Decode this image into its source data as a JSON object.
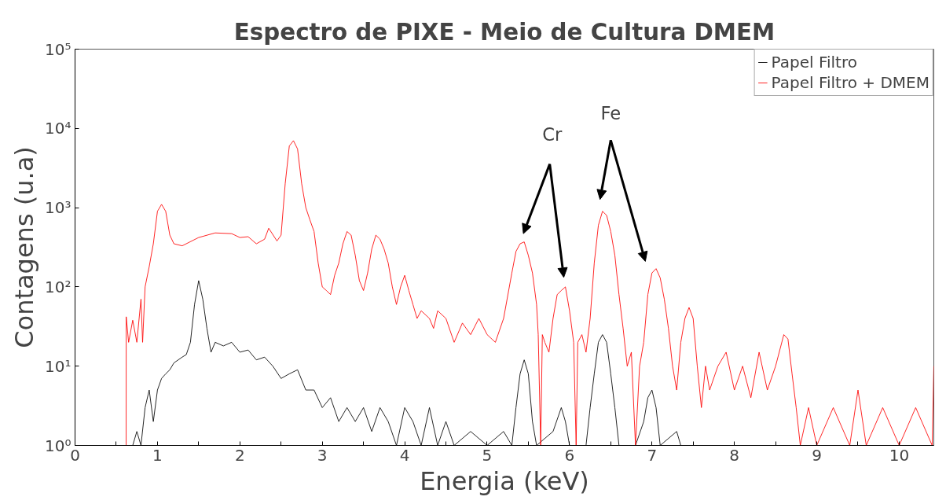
{
  "chart_data": {
    "type": "line",
    "title": "Espectro de PIXE - Meio de Cultura DMEM",
    "xlabel": "Energia (keV)",
    "ylabel": "Contagens (u.a)",
    "log": "y",
    "legend": "top right",
    "grid": false,
    "xlim": [
      0,
      10.42
    ],
    "xticks": [
      0,
      {
        "value": 0.5,
        "label": null
      },
      1,
      {
        "value": 1.5,
        "label": null
      },
      2,
      {
        "value": 2.5,
        "label": null
      },
      3,
      {
        "value": 3.5,
        "label": null
      },
      4,
      {
        "value": 4.5,
        "label": null
      },
      5,
      {
        "value": 5.5,
        "label": null
      },
      6,
      {
        "value": 6.5,
        "label": null
      },
      7,
      {
        "value": 7.5,
        "label": null
      },
      8,
      {
        "value": 8.5,
        "label": null
      },
      9,
      {
        "value": 9.5,
        "label": null
      },
      10
    ],
    "ylim": [
      1,
      100000
    ],
    "yticks": [
      {
        "value": 1,
        "label": "10⁰"
      },
      {
        "value": 10,
        "label": "10¹"
      },
      {
        "value": 100,
        "label": "10²"
      },
      {
        "value": 1000,
        "label": "10³"
      },
      {
        "value": 10000,
        "label": "10⁴"
      },
      {
        "value": 100000,
        "label": "10⁵"
      }
    ],
    "annotations": [
      "Cr",
      "Fe"
    ],
    "series": [
      {
        "name": "Papel Filtro",
        "color": "#000000",
        "x": [
          0.7,
          0.75,
          0.8,
          0.85,
          0.9,
          0.95,
          1.0,
          1.05,
          1.1,
          1.15,
          1.2,
          1.3,
          1.35,
          1.4,
          1.45,
          1.5,
          1.55,
          1.6,
          1.65,
          1.7,
          1.8,
          1.9,
          2.0,
          2.1,
          2.2,
          2.3,
          2.4,
          2.5,
          2.6,
          2.7,
          2.8,
          2.9,
          3.0,
          3.1,
          3.2,
          3.3,
          3.4,
          3.5,
          3.6,
          3.7,
          3.8,
          3.9,
          4.0,
          4.1,
          4.2,
          4.3,
          4.4,
          4.5,
          4.6,
          4.8,
          5.0,
          5.2,
          5.3,
          5.35,
          5.4,
          5.45,
          5.5,
          5.55,
          5.6,
          5.8,
          5.9,
          5.95,
          6.0,
          6.2,
          6.25,
          6.3,
          6.35,
          6.4,
          6.45,
          6.5,
          6.55,
          6.6,
          6.8,
          6.9,
          6.95,
          7.0,
          7.05,
          7.1,
          7.3,
          7.35
        ],
        "values": [
          1,
          1.5,
          1,
          3,
          5,
          2,
          5,
          7,
          8,
          9,
          11,
          13,
          14,
          20,
          60,
          120,
          70,
          30,
          15,
          20,
          18,
          20,
          15,
          16,
          12,
          13,
          10,
          7,
          8,
          9,
          5,
          5,
          3,
          4,
          2,
          3,
          2,
          3,
          1.5,
          3,
          2,
          1,
          3,
          2,
          1,
          3,
          1,
          2,
          1,
          1.5,
          1,
          1.5,
          1,
          3,
          8,
          12,
          8,
          2,
          1,
          1.5,
          3,
          2,
          1,
          1,
          3,
          8,
          20,
          25,
          20,
          8,
          3,
          1,
          1,
          2,
          4,
          5,
          3,
          1,
          1.5,
          1
        ]
      },
      {
        "name": "Papel Filtro + DMEM",
        "color": "#ff0000",
        "x": [
          0.62,
          0.621,
          0.65,
          0.7,
          0.75,
          0.8,
          0.82,
          0.85,
          0.9,
          0.95,
          1.0,
          1.05,
          1.1,
          1.15,
          1.2,
          1.3,
          1.5,
          1.7,
          1.9,
          2.0,
          2.1,
          2.2,
          2.3,
          2.35,
          2.45,
          2.5,
          2.55,
          2.6,
          2.65,
          2.7,
          2.75,
          2.8,
          2.85,
          2.9,
          2.95,
          3.0,
          3.05,
          3.1,
          3.15,
          3.2,
          3.25,
          3.3,
          3.35,
          3.4,
          3.45,
          3.5,
          3.55,
          3.6,
          3.65,
          3.7,
          3.75,
          3.8,
          3.85,
          3.9,
          3.95,
          4.0,
          4.05,
          4.1,
          4.15,
          4.2,
          4.3,
          4.35,
          4.4,
          4.5,
          4.6,
          4.7,
          4.8,
          4.9,
          5.0,
          5.1,
          5.2,
          5.3,
          5.35,
          5.4,
          5.45,
          5.5,
          5.55,
          5.6,
          5.62,
          5.65,
          5.67,
          5.7,
          5.75,
          5.8,
          5.85,
          5.9,
          5.95,
          6.0,
          6.05,
          6.08,
          6.1,
          6.15,
          6.2,
          6.25,
          6.3,
          6.35,
          6.4,
          6.45,
          6.5,
          6.55,
          6.6,
          6.65,
          6.7,
          6.75,
          6.8,
          6.85,
          6.9,
          6.95,
          7.0,
          7.05,
          7.1,
          7.15,
          7.2,
          7.25,
          7.3,
          7.35,
          7.4,
          7.45,
          7.5,
          7.55,
          7.6,
          7.65,
          7.7,
          7.8,
          7.9,
          8.0,
          8.1,
          8.2,
          8.3,
          8.4,
          8.5,
          8.6,
          8.65,
          8.7,
          8.75,
          8.8,
          8.9,
          9.0,
          9.2,
          9.4,
          9.5,
          9.6,
          9.8,
          10.0,
          10.2,
          10.4,
          10.42
        ],
        "values": [
          1,
          42,
          20,
          38,
          20,
          70,
          20,
          100,
          180,
          350,
          900,
          1100,
          900,
          450,
          350,
          330,
          420,
          480,
          470,
          420,
          430,
          350,
          400,
          550,
          380,
          450,
          2000,
          6000,
          7000,
          5500,
          2000,
          1000,
          700,
          500,
          200,
          100,
          90,
          80,
          140,
          200,
          350,
          500,
          450,
          250,
          120,
          90,
          150,
          300,
          450,
          400,
          300,
          200,
          100,
          60,
          100,
          140,
          90,
          60,
          40,
          50,
          40,
          30,
          50,
          40,
          20,
          35,
          25,
          40,
          25,
          20,
          40,
          150,
          280,
          350,
          370,
          250,
          150,
          60,
          25,
          1,
          25,
          20,
          15,
          40,
          80,
          90,
          100,
          50,
          20,
          1,
          20,
          25,
          15,
          40,
          200,
          600,
          900,
          800,
          500,
          250,
          80,
          30,
          10,
          15,
          1,
          10,
          20,
          80,
          150,
          170,
          130,
          70,
          30,
          10,
          5,
          20,
          40,
          55,
          40,
          10,
          3,
          10,
          5,
          10,
          15,
          5,
          10,
          4,
          15,
          5,
          10,
          25,
          22,
          8,
          3,
          1,
          3,
          1,
          3,
          1,
          5,
          1,
          3,
          1,
          3,
          1,
          10
        ]
      }
    ]
  }
}
